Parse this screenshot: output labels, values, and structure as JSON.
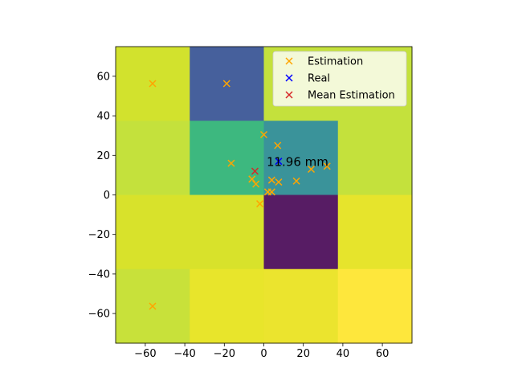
{
  "chart_data": {
    "type": "heatmap",
    "xlim": [
      -75,
      75
    ],
    "ylim": [
      -75,
      75
    ],
    "grid": false,
    "x_ticks": [
      -60,
      -40,
      -20,
      0,
      20,
      40,
      60
    ],
    "y_ticks": [
      -60,
      -40,
      -20,
      0,
      20,
      40,
      60
    ],
    "x_edges": [
      -75,
      -37.5,
      0,
      37.5,
      75
    ],
    "y_edges": [
      75,
      37.5,
      0,
      -37.5,
      -75
    ],
    "heatmap_colors": [
      [
        "#d2e22d",
        "#46609c",
        "#c4e13c",
        "#c4e13c"
      ],
      [
        "#c4e13c",
        "#3db87f",
        "#3a939a",
        "#c4e13c"
      ],
      [
        "#d8e22b",
        "#d8e22b",
        "#571c64",
        "#e6e42c"
      ],
      [
        "#c8e13a",
        "#e8e52b",
        "#ebe42e",
        "#fee73c"
      ]
    ],
    "series": [
      {
        "name": "Estimation",
        "marker": "x",
        "color": "#ffa500",
        "points": [
          [
            -56.3,
            56.3
          ],
          [
            -18.8,
            56.3
          ],
          [
            0,
            30.5
          ],
          [
            7,
            25
          ],
          [
            -16.5,
            16
          ],
          [
            24,
            13
          ],
          [
            32,
            14.5
          ],
          [
            -6,
            8
          ],
          [
            -4,
            5.5
          ],
          [
            4,
            7.5
          ],
          [
            7.5,
            6.5
          ],
          [
            16.5,
            7
          ],
          [
            2,
            1.5
          ],
          [
            4,
            1.5
          ],
          [
            -2,
            -4.5
          ],
          [
            -56.3,
            -56.3
          ]
        ]
      },
      {
        "name": "Real",
        "marker": "x",
        "color": "#0000ff",
        "points": [
          [
            7.5,
            17
          ]
        ]
      },
      {
        "name": "Mean Estimation",
        "marker": "x",
        "color": "#d62728",
        "points": [
          [
            -4.5,
            12
          ]
        ]
      }
    ],
    "annotation": "11.96 mm",
    "legend": {
      "position": "upper right",
      "entries": [
        "Estimation",
        "Real",
        "Mean Estimation"
      ]
    }
  }
}
